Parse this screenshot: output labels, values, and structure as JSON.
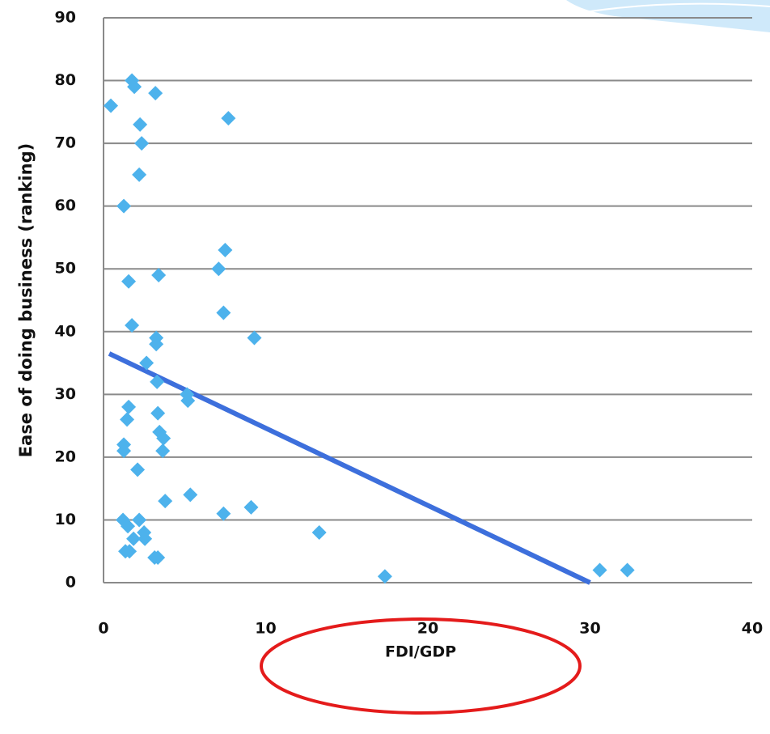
{
  "chart_data": {
    "type": "scatter",
    "x_label": "FDI/GDP",
    "y_label": "Ease of doing business (ranking)",
    "x": [
      0.45,
      1.75,
      1.9,
      3.2,
      7.7,
      2.25,
      2.35,
      2.2,
      1.25,
      7.5,
      7.1,
      3.4,
      1.55,
      7.4,
      1.75,
      3.25,
      9.3,
      3.25,
      2.65,
      3.3,
      5.15,
      5.2,
      1.55,
      3.35,
      1.45,
      3.45,
      3.7,
      1.25,
      1.25,
      3.65,
      2.1,
      5.35,
      3.8,
      9.1,
      7.4,
      1.2,
      2.2,
      1.5,
      2.5,
      13.3,
      1.85,
      2.55,
      1.35,
      1.6,
      3.15,
      3.35,
      17.35,
      30.6,
      32.3
    ],
    "values": [
      76,
      80,
      79,
      78,
      74,
      73,
      70,
      65,
      60,
      53,
      50,
      49,
      48,
      43,
      41,
      39,
      39,
      38,
      35,
      32,
      30,
      29,
      28,
      27,
      26,
      24,
      23,
      22,
      21,
      21,
      18,
      14,
      13,
      12,
      11,
      10,
      10,
      9,
      8,
      8,
      7,
      7,
      5,
      5,
      4,
      4,
      1,
      2,
      2
    ],
    "color": "#4db2ec",
    "trendline": {
      "x": [
        0.35,
        30
      ],
      "values": [
        36.5,
        0
      ],
      "color": "#3d6fdc"
    },
    "xlim": [
      0,
      40
    ],
    "xticks": [
      0,
      10,
      20,
      30,
      40
    ],
    "ylim": [
      0,
      90
    ],
    "yticks": [
      0,
      10,
      20,
      30,
      40,
      50,
      60,
      70,
      80,
      90
    ],
    "grid": true
  }
}
